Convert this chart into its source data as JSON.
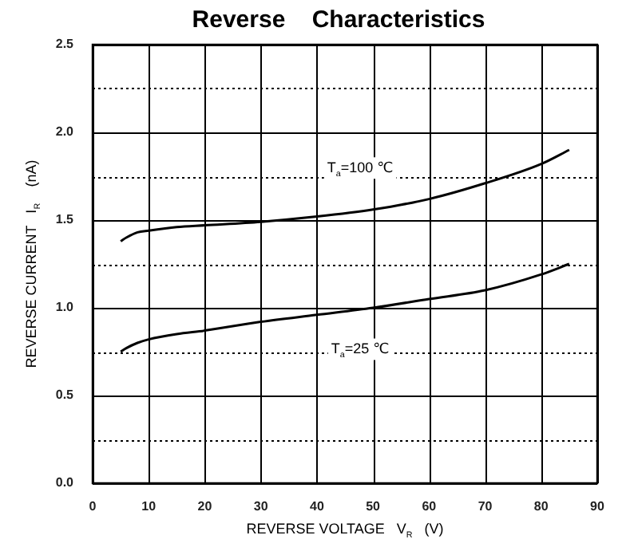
{
  "chart_data": {
    "type": "line",
    "title": "Reverse    Characteristics",
    "xlabel": "REVERSE VOLTAGE   V$_{R}$   (V)",
    "ylabel": "REVERSE CURRENT   I$_{R}$    (nA)",
    "x": [
      5,
      6,
      8,
      10,
      15,
      20,
      30,
      40,
      50,
      60,
      70,
      80,
      85
    ],
    "series": [
      {
        "name": "T$_{a}$=100 ℃",
        "color": "#000000",
        "values": [
          1.38,
          1.4,
          1.43,
          1.44,
          1.46,
          1.47,
          1.49,
          1.52,
          1.56,
          1.62,
          1.71,
          1.82,
          1.9
        ]
      },
      {
        "name": "T$_{a}$=25 ℃",
        "color": "#000000",
        "values": [
          0.75,
          0.77,
          0.8,
          0.82,
          0.85,
          0.87,
          0.92,
          0.96,
          1.0,
          1.05,
          1.1,
          1.19,
          1.25
        ]
      }
    ],
    "xlim": [
      0,
      90
    ],
    "xticks": [
      0,
      10,
      20,
      30,
      40,
      50,
      60,
      70,
      80,
      90
    ],
    "ylim": [
      0,
      2.5
    ],
    "yticks": [
      {
        "value": 0,
        "label": "0.0"
      },
      {
        "value": 0.25,
        "label": null
      },
      {
        "value": 0.5,
        "label": "0.5"
      },
      {
        "value": 0.75,
        "label": null
      },
      {
        "value": 1,
        "label": "1.0"
      },
      {
        "value": 1.25,
        "label": null
      },
      {
        "value": 1.5,
        "label": "1.5"
      },
      {
        "value": 1.75,
        "label": null
      },
      {
        "value": 2,
        "label": "2.0"
      },
      {
        "value": 2.25,
        "label": null
      },
      {
        "value": 2.5,
        "label": "2.5"
      }
    ],
    "grid": true,
    "legend": false,
    "marker": "none",
    "line_style": "solid"
  }
}
